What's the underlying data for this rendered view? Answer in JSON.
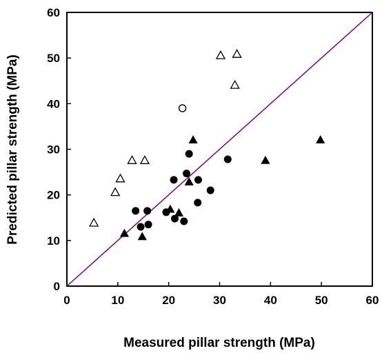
{
  "chart_data": {
    "type": "scatter",
    "xlabel": "Measured pillar strength (MPa)",
    "ylabel": "Predicted pillar strength (MPa)",
    "xlim": [
      0,
      60
    ],
    "ylim": [
      0,
      60
    ],
    "xticks": [
      "0",
      "10",
      "20",
      "30",
      "40",
      "50",
      "60"
    ],
    "yticks": [
      "0",
      "10",
      "20",
      "30",
      "40",
      "50",
      "60"
    ],
    "grid": false,
    "reference_line": {
      "x": [
        0,
        60
      ],
      "y": [
        0,
        60
      ],
      "color": "#800080"
    },
    "series": [
      {
        "marker": "filled-circle",
        "color": "#000000",
        "points": [
          [
            13.5,
            16.5
          ],
          [
            14.5,
            13.0
          ],
          [
            15.8,
            16.5
          ],
          [
            16.0,
            13.5
          ],
          [
            19.5,
            16.2
          ],
          [
            21.0,
            23.3
          ],
          [
            21.2,
            14.8
          ],
          [
            23.0,
            14.2
          ],
          [
            23.5,
            24.7
          ],
          [
            24.0,
            29.0
          ],
          [
            25.7,
            18.3
          ],
          [
            25.8,
            23.3
          ],
          [
            28.2,
            21.0
          ],
          [
            31.6,
            27.8
          ]
        ]
      },
      {
        "marker": "filled-triangle",
        "color": "#000000",
        "points": [
          [
            11.3,
            11.5
          ],
          [
            14.8,
            10.8
          ],
          [
            20.3,
            16.8
          ],
          [
            22.0,
            16.0
          ],
          [
            24.0,
            22.8
          ],
          [
            24.8,
            32.0
          ],
          [
            39.0,
            27.5
          ],
          [
            49.8,
            32.0
          ]
        ]
      },
      {
        "marker": "open-triangle",
        "color": "#000000",
        "points": [
          [
            5.3,
            13.8
          ],
          [
            9.5,
            20.5
          ],
          [
            10.5,
            23.5
          ],
          [
            12.8,
            27.5
          ],
          [
            15.3,
            27.5
          ],
          [
            30.2,
            50.5
          ],
          [
            33.0,
            44.0
          ],
          [
            33.4,
            50.8
          ]
        ]
      },
      {
        "marker": "open-circle",
        "color": "#000000",
        "points": [
          [
            22.7,
            39.0
          ]
        ]
      }
    ]
  }
}
